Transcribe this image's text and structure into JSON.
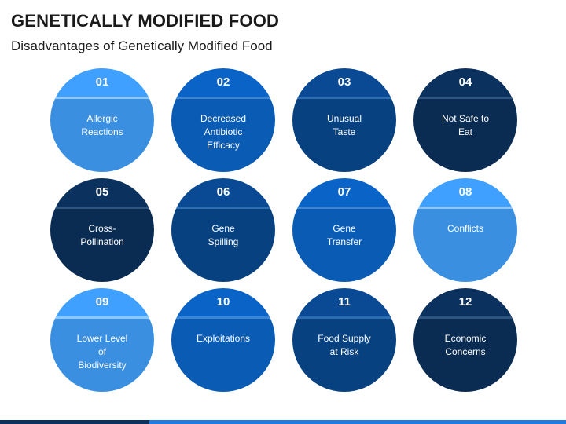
{
  "title": "GENETICALLY MODIFIED FOOD",
  "subtitle": "Disadvantages of Genetically Modified Food",
  "colors": {
    "light_blue": "#3b8fe0",
    "medium_blue": "#0a5bb3",
    "dark_blue": "#07417f",
    "navy": "#0a2b52"
  },
  "items": [
    {
      "number": "01",
      "label": "Allergic\nReactions",
      "theme": "t-light"
    },
    {
      "number": "02",
      "label": "Decreased\nAntibiotic\nEfficacy",
      "theme": "t-mid"
    },
    {
      "number": "03",
      "label": "Unusual\nTaste",
      "theme": "t-dark"
    },
    {
      "number": "04",
      "label": "Not Safe to\nEat",
      "theme": "t-navy"
    },
    {
      "number": "05",
      "label": "Cross-\nPollination",
      "theme": "t-navy"
    },
    {
      "number": "06",
      "label": "Gene\nSpilling",
      "theme": "t-dark"
    },
    {
      "number": "07",
      "label": "Gene\nTransfer",
      "theme": "t-mid"
    },
    {
      "number": "08",
      "label": "Conflicts",
      "theme": "t-light"
    },
    {
      "number": "09",
      "label": "Lower Level\nof\nBiodiversity",
      "theme": "t-light"
    },
    {
      "number": "10",
      "label": "Exploitations",
      "theme": "t-mid"
    },
    {
      "number": "11",
      "label": "Food Supply\nat Risk",
      "theme": "t-dark"
    },
    {
      "number": "12",
      "label": "Economic\nConcerns",
      "theme": "t-navy"
    }
  ]
}
